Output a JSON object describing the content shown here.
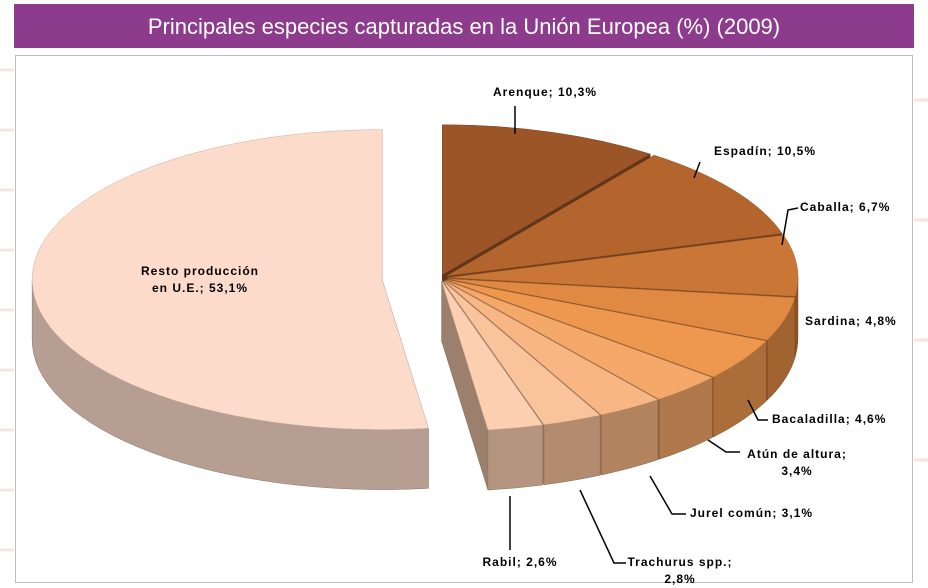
{
  "chart_data": {
    "type": "pie",
    "title": "Principales especies capturadas en la Unión Europea (%) (2009)",
    "values": [
      10.3,
      10.5,
      6.7,
      4.8,
      4.6,
      3.4,
      3.1,
      2.8,
      2.6,
      53.1
    ],
    "value_labels": [
      [
        "Arenque; 10,3%"
      ],
      [
        "Espadín; 10,5%"
      ],
      [
        "Caballa; 6,7%"
      ],
      [
        "Sardina; 4,8%"
      ],
      [
        "Bacaladilla; 4,6%"
      ],
      [
        "Atún de altura;",
        "3,4%"
      ],
      [
        "Jurel común; 3,1%"
      ],
      [
        "Trachurus spp.;",
        "2,8%"
      ],
      [
        "Rabil; 2,6%"
      ],
      [
        "Resto producción",
        "en U.E.; 53,1%"
      ]
    ],
    "colors": [
      "#9c5526",
      "#b4652e",
      "#c97637",
      "#e08943",
      "#ee984f",
      "#f4a86a",
      "#f7b683",
      "#f9c39b",
      "#fbcfb0",
      "#fddbcb"
    ]
  }
}
